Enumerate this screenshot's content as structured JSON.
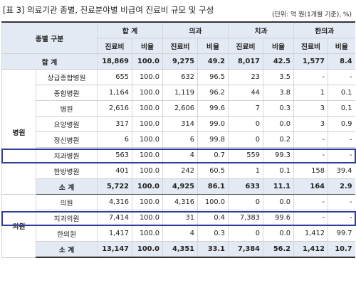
{
  "caption": "[표 3] 의료기관 종별, 진료분야별 비급여 진료비 규모 및 구성",
  "unit_note": "(단위: 억 원(1개월 기준), %)",
  "header": {
    "category_label": "종별 구분",
    "groups": [
      "합 계",
      "의과",
      "치과",
      "한의과"
    ],
    "sub": [
      "진료비",
      "비율",
      "진료비",
      "비율",
      "진료비",
      "비율",
      "진료비",
      "비율"
    ]
  },
  "total_row": {
    "label": "합 계",
    "cells": [
      "18,869",
      "100.0",
      "9,275",
      "49.2",
      "8,017",
      "42.5",
      "1,577",
      "8.4"
    ]
  },
  "hospital": {
    "group_label": "병원",
    "rows": [
      {
        "label": "상급종합병원",
        "cells": [
          "655",
          "100.0",
          "632",
          "96.5",
          "23",
          "3.5",
          "-",
          "-"
        ]
      },
      {
        "label": "종합병원",
        "cells": [
          "1,164",
          "100.0",
          "1,119",
          "96.2",
          "44",
          "3.8",
          "1",
          "0.1"
        ]
      },
      {
        "label": "병원",
        "cells": [
          "2,616",
          "100.0",
          "2,606",
          "99.6",
          "7",
          "0.3",
          "3",
          "0.1"
        ]
      },
      {
        "label": "요양병원",
        "cells": [
          "317",
          "100.0",
          "314",
          "99.0",
          "0",
          "0.0",
          "3",
          "0.9"
        ]
      },
      {
        "label": "정신병원",
        "cells": [
          "6",
          "100.0",
          "6",
          "99.8",
          "0",
          "0.2",
          "-",
          "-"
        ]
      },
      {
        "label": "치과병원",
        "cells": [
          "563",
          "100.0",
          "4",
          "0.7",
          "559",
          "99.3",
          "-",
          "-"
        ]
      },
      {
        "label": "한방병원",
        "cells": [
          "401",
          "100.0",
          "242",
          "60.5",
          "1",
          "0.1",
          "158",
          "39.4"
        ]
      }
    ],
    "subtotal": {
      "label": "소 계",
      "cells": [
        "5,722",
        "100.0",
        "4,925",
        "86.1",
        "633",
        "11.1",
        "164",
        "2.9"
      ]
    }
  },
  "clinic": {
    "group_label": "의원",
    "rows": [
      {
        "label": "의원",
        "cells": [
          "4,316",
          "100.0",
          "4,316",
          "100.0",
          "0",
          "0.0",
          "-",
          "-"
        ]
      },
      {
        "label": "치과의원",
        "cells": [
          "7,414",
          "100.0",
          "31",
          "0.4",
          "7,383",
          "99.6",
          "-",
          "-"
        ]
      },
      {
        "label": "한의원",
        "cells": [
          "1,417",
          "100.0",
          "4",
          "0.3",
          "0",
          "0.0",
          "1,412",
          "99.7"
        ]
      }
    ],
    "subtotal": {
      "label": "소 계",
      "cells": [
        "13,147",
        "100.0",
        "4,351",
        "33.1",
        "7,384",
        "56.2",
        "1,412",
        "10.7"
      ]
    }
  },
  "highlight_color": "#2e3e9a"
}
